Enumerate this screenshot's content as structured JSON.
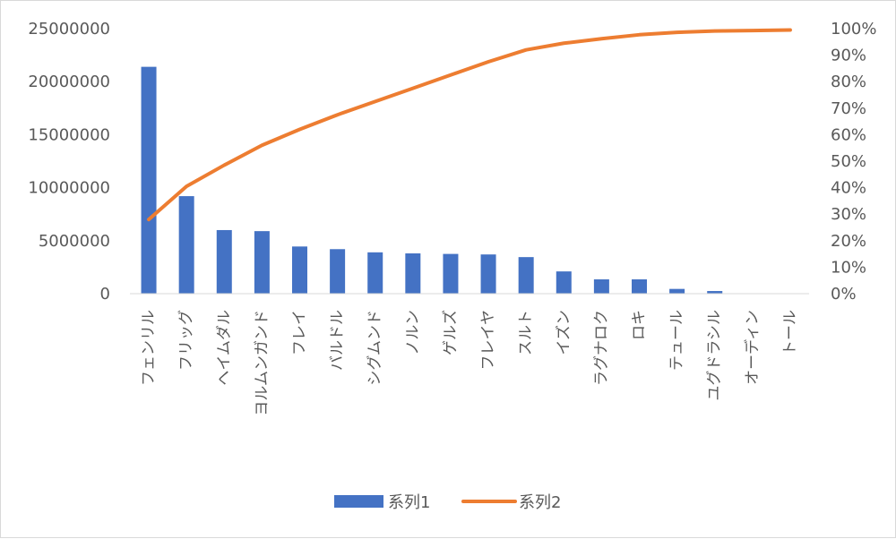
{
  "chart_data": {
    "type": "bar",
    "categories": [
      "フェンリル",
      "フリッグ",
      "ヘイムダル",
      "ヨルムンガンド",
      "フレイ",
      "バルドル",
      "シグムンド",
      "ノルン",
      "ゲルズ",
      "フレイヤ",
      "スルト",
      "イズン",
      "ラグナロク",
      "ロキ",
      "テュール",
      "ユグドラシル",
      "オーディン",
      "トール"
    ],
    "series": [
      {
        "name": "系列1",
        "type": "bar",
        "axis": "left",
        "color": "#4472c4",
        "values": [
          21400000,
          9200000,
          6000000,
          5900000,
          4450000,
          4200000,
          3900000,
          3800000,
          3750000,
          3700000,
          3450000,
          2100000,
          1350000,
          1350000,
          450000,
          250000,
          0,
          0
        ]
      },
      {
        "name": "系列2",
        "type": "line",
        "axis": "right",
        "color": "#ed7d31",
        "values": [
          0.28,
          0.405,
          0.485,
          0.56,
          0.62,
          0.675,
          0.725,
          0.775,
          0.825,
          0.875,
          0.92,
          0.945,
          0.962,
          0.977,
          0.986,
          0.991,
          0.993,
          0.995
        ]
      }
    ],
    "y_left": {
      "ylim": [
        0,
        25000000
      ],
      "ticks": [
        "0",
        "5000000",
        "10000000",
        "15000000",
        "20000000",
        "25000000"
      ]
    },
    "y_right": {
      "ylim": [
        0,
        1
      ],
      "ticks": [
        "0%",
        "10%",
        "20%",
        "30%",
        "40%",
        "50%",
        "60%",
        "70%",
        "80%",
        "90%",
        "100%"
      ]
    },
    "grid": false,
    "legend_position": "bottom"
  }
}
